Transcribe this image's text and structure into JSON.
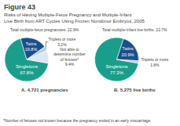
{
  "title": "Figure 43",
  "subtitle": "Risks of Having Multiple-Fetus Pregnancy and Multiple-Infant\nLive Birth from ART Cycles Using Frozen Nondonor Embryos, 2005",
  "annotations": [
    "*Number of fetuses not known because the pregnancy ended in an early miscarriage."
  ],
  "chart_data": [
    {
      "type": "pie",
      "title": "A. 4,721 pregnancies",
      "annotations": [
        "Total multiple-fetus pregnancies: 22.9%"
      ],
      "categories": [
        "Singletons",
        "Twins",
        "Triplets or more",
        "Not able to\ndetermine number\nof fetuses*"
      ],
      "values": [
        67.8,
        19.8,
        3.2,
        9.4
      ],
      "value_labels": [
        "67.8%",
        "19.8%",
        "3.2%",
        "9.4%"
      ],
      "colors": [
        "#1a9e8c",
        "#1a4f8c",
        "#b8cfe0",
        "#dce8f4"
      ],
      "data_labels": true
    },
    {
      "type": "pie",
      "title": "B. 5,275 live births",
      "annotations": [
        "Total multiple-infant live births: 22.7%"
      ],
      "categories": [
        "Singletons",
        "Twins",
        "Triplets or more"
      ],
      "values": [
        77.3,
        20.9,
        1.8
      ],
      "value_labels": [
        "77.3%",
        "20.9%",
        "1.8%"
      ],
      "colors": [
        "#1a9e8c",
        "#1a4f8c",
        "#b8cfe0"
      ],
      "data_labels": true
    }
  ]
}
